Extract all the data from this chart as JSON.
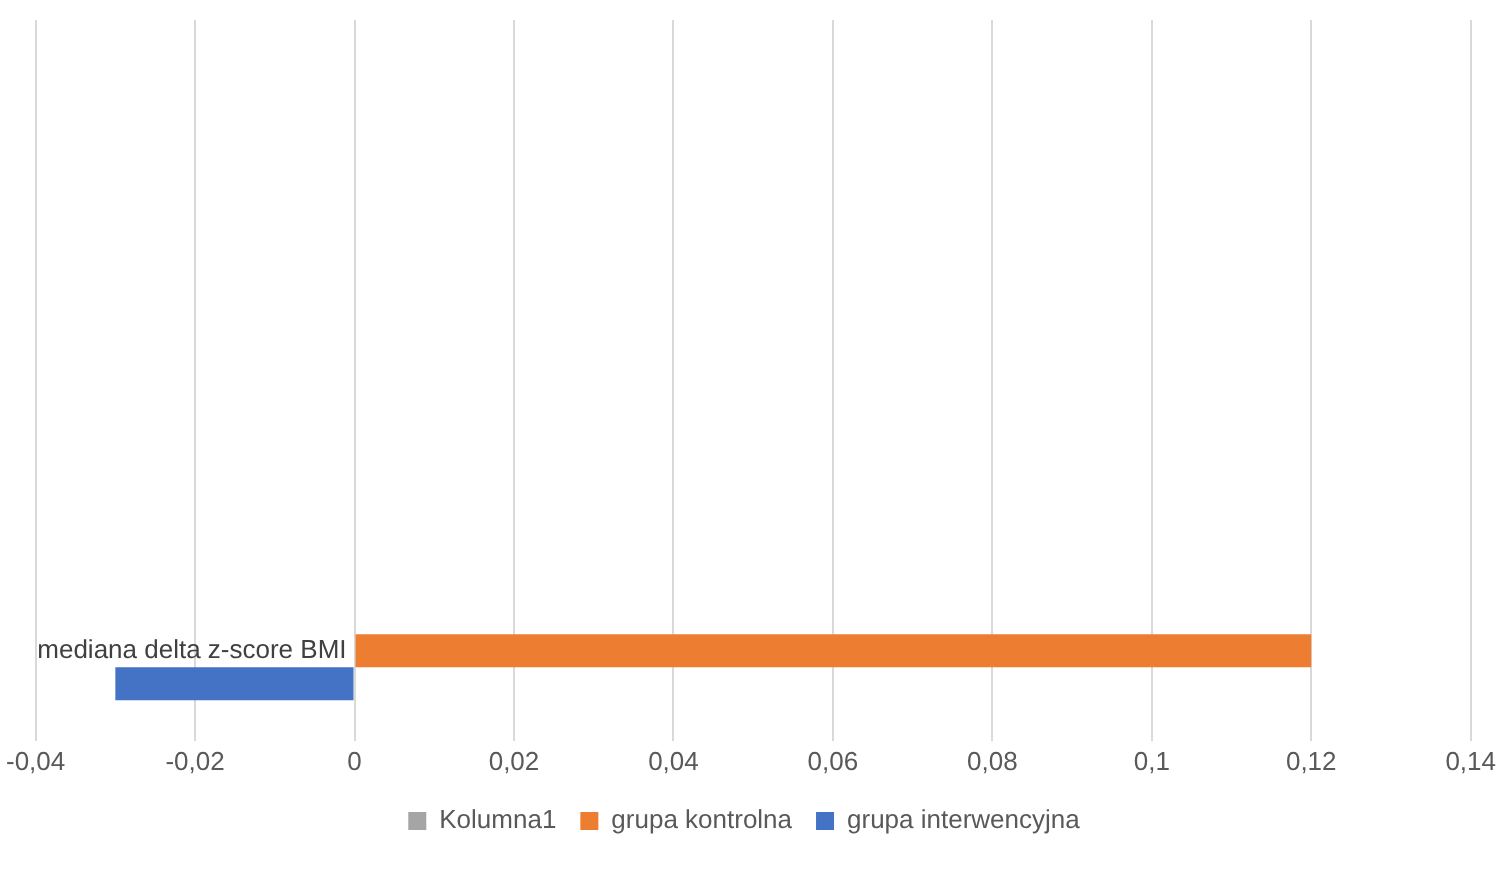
{
  "chart_data": {
    "type": "bar",
    "orientation": "horizontal",
    "categories": [
      null,
      null,
      null,
      "mediana delta z-score BMI"
    ],
    "series": [
      {
        "name": "Kolumna1",
        "color": "#a5a5a5",
        "values": [
          null,
          null,
          null,
          null
        ]
      },
      {
        "name": "grupa kontrolna",
        "color": "#ed7d31",
        "values": [
          null,
          null,
          null,
          0.12
        ]
      },
      {
        "name": "grupa interwencyjna",
        "color": "#4472c4",
        "values": [
          null,
          null,
          null,
          -0.03
        ]
      }
    ],
    "xlim": [
      -0.04,
      0.14
    ],
    "xticks": [
      {
        "value": -0.04,
        "label": "-0,04"
      },
      {
        "value": -0.02,
        "label": "-0,02"
      },
      {
        "value": 0,
        "label": "0"
      },
      {
        "value": 0.02,
        "label": "0,02"
      },
      {
        "value": 0.04,
        "label": "0,04"
      },
      {
        "value": 0.06,
        "label": "0,06"
      },
      {
        "value": 0.08,
        "label": "0,08"
      },
      {
        "value": 0.1,
        "label": "0,1"
      },
      {
        "value": 0.12,
        "label": "0,12"
      },
      {
        "value": 0.14,
        "label": "0,14"
      }
    ],
    "grid": "x",
    "legend": "bottom"
  }
}
